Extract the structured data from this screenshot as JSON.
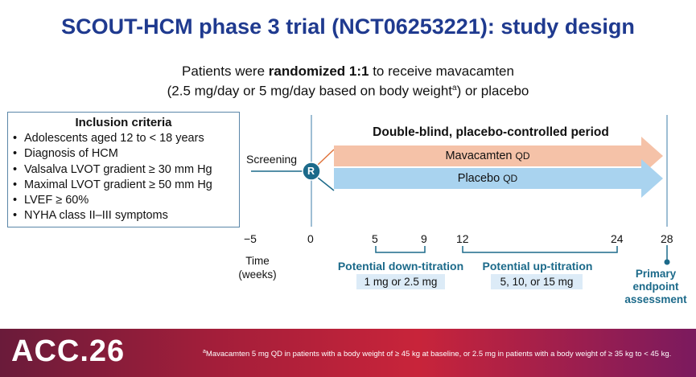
{
  "title": "SCOUT-HCM phase 3 trial (NCT06253221): study design",
  "randomization": {
    "line1_pre": "Patients were ",
    "line1_bold": "randomized 1:1",
    "line1_post": " to receive mavacamten",
    "line2_pre": "(2.5 mg/day or 5 mg/day based on body weight",
    "line2_sup": "a",
    "line2_post": ") or placebo"
  },
  "inclusion": {
    "heading": "Inclusion criteria",
    "items": [
      "Adolescents aged 12 to < 18 years",
      "Diagnosis of HCM",
      "Valsalva LVOT gradient ≥ 30 mm Hg",
      "Maximal LVOT gradient ≥ 50 mm Hg",
      "LVEF ≥ 60%",
      "NYHA class II–III symptoms"
    ]
  },
  "timeline": {
    "period_label": "Double-blind, placebo-controlled period",
    "screening": "Screening",
    "randomize_marker": "R",
    "arm_mavacamten": "Mavacamten",
    "arm_placebo": "Placebo",
    "dose_suffix": "QD",
    "ticks": [
      "−5",
      "0",
      "5",
      "9",
      "12",
      "24",
      "28"
    ],
    "time_label_1": "Time",
    "time_label_2": "(weeks)",
    "down_titration_label": "Potential down-titration",
    "down_titration_dose": "1 mg or 2.5 mg",
    "up_titration_label": "Potential up-titration",
    "up_titration_dose": "5, 10, or 15 mg",
    "endpoint_1": "Primary",
    "endpoint_2": "endpoint",
    "endpoint_3": "assessment"
  },
  "colors": {
    "title": "#1f3a8f",
    "mavacamten_arrow": "#f5c2a8",
    "placebo_arrow": "#a9d3ef",
    "teal": "#1c6a8a",
    "dose_box": "#dcebf7"
  },
  "footer": {
    "logo": "ACC.26",
    "footnote_sup": "a",
    "footnote": "Mavacamten 5 mg QD in patients with a body weight of ≥ 45 kg at baseline, or 2.5 mg in patients with a body weight of ≥ 35 kg to < 45 kg."
  }
}
